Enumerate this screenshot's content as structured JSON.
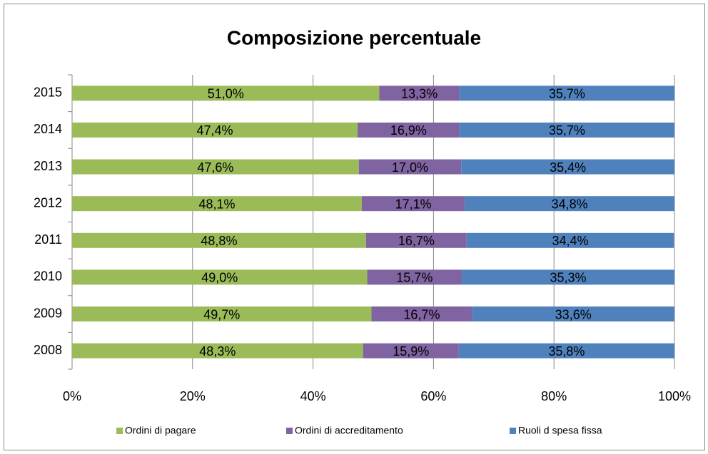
{
  "chart_data": {
    "type": "stacked-bar-horizontal",
    "title": "Composizione percentuale",
    "categories": [
      "2015",
      "2014",
      "2013",
      "2012",
      "2011",
      "2010",
      "2009",
      "2008"
    ],
    "series": [
      {
        "name": "Ordini di pagare",
        "color": "#9bbb59",
        "values": [
          51.0,
          47.4,
          47.6,
          48.1,
          48.8,
          49.0,
          49.7,
          48.3
        ],
        "value_labels": [
          "51,0%",
          "47,4%",
          "47,6%",
          "48,1%",
          "48,8%",
          "49,0%",
          "49,7%",
          "48,3%"
        ]
      },
      {
        "name": "Ordini di accreditamento",
        "color": "#8064a2",
        "values": [
          13.3,
          16.9,
          17.0,
          17.1,
          16.7,
          15.7,
          16.7,
          15.9
        ],
        "value_labels": [
          "13,3%",
          "16,9%",
          "17,0%",
          "17,1%",
          "16,7%",
          "15,7%",
          "16,7%",
          "15,9%"
        ]
      },
      {
        "name": "Ruoli d spesa fissa",
        "color": "#4f81bd",
        "values": [
          35.7,
          35.7,
          35.4,
          34.8,
          34.4,
          35.3,
          33.6,
          35.8
        ],
        "value_labels": [
          "35,7%",
          "35,7%",
          "35,4%",
          "34,8%",
          "34,4%",
          "35,3%",
          "33,6%",
          "35,8%"
        ]
      }
    ],
    "xlim": [
      0,
      100
    ],
    "xticks": [
      {
        "value": 0,
        "label": "0%"
      },
      {
        "value": 20,
        "label": "20%"
      },
      {
        "value": 40,
        "label": "40%"
      },
      {
        "value": 60,
        "label": "60%"
      },
      {
        "value": 80,
        "label": "80%"
      },
      {
        "value": 100,
        "label": "100%"
      }
    ],
    "grid": true,
    "legend": "bottom"
  }
}
